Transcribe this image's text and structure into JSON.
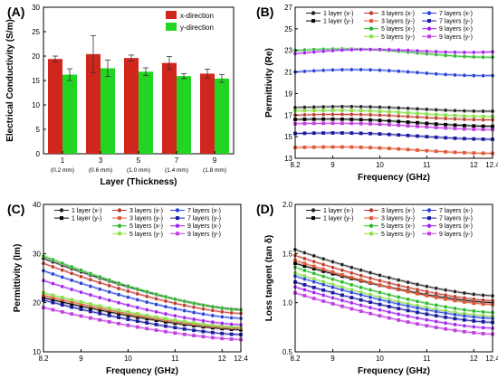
{
  "panels": {
    "a": {
      "label": "(A)"
    },
    "b": {
      "label": "(B)"
    },
    "c": {
      "label": "(C)"
    },
    "d": {
      "label": "(D)"
    }
  },
  "colors": {
    "x_direction": "#d0261c",
    "y_direction": "#22d522",
    "1_x": "#222222",
    "1_y": "#000000",
    "3_x": "#c0392b",
    "3_y": "#e05a3a",
    "5_x": "#27b827",
    "5_y": "#8be04a",
    "7_x": "#2440d8",
    "7_y": "#1a1aa0",
    "9_x": "#a020f0",
    "9_y": "#c040e0"
  },
  "chart_data": [
    {
      "panel": "A",
      "type": "bar",
      "title": "",
      "xlabel": "Layer (Thickness)",
      "ylabel": "Electrical Conductivity (S/m)",
      "ylim": [
        0,
        30
      ],
      "yticks": [
        0,
        5,
        10,
        15,
        20,
        25,
        30
      ],
      "categories": [
        "1",
        "3",
        "5",
        "7",
        "9"
      ],
      "category_sublabels": [
        "(0.2 mm)",
        "(0.6 mm)",
        "(1.0 mm)",
        "(1.4 mm)",
        "(1.8 mm)"
      ],
      "series": [
        {
          "name": "x-direction",
          "values": [
            19.4,
            20.4,
            19.6,
            18.6,
            16.4
          ],
          "errors": [
            0.6,
            3.8,
            0.6,
            1.3,
            0.9
          ]
        },
        {
          "name": "y-direction",
          "values": [
            16.2,
            17.5,
            16.8,
            15.9,
            15.4
          ],
          "errors": [
            1.2,
            1.7,
            0.8,
            0.5,
            0.8
          ]
        }
      ],
      "legend": "top-right"
    },
    {
      "panel": "B",
      "type": "line",
      "title": "",
      "xlabel": "Frequency (GHz)",
      "ylabel": "Permittivity (Re)",
      "xlim": [
        8.2,
        12.4
      ],
      "xticks": [
        "8.2",
        "9",
        "10",
        "11",
        "12",
        "12.4"
      ],
      "ylim": [
        13,
        27
      ],
      "yticks": [
        13,
        15,
        17,
        19,
        21,
        23,
        25,
        27
      ],
      "legend": "top",
      "series": [
        {
          "name": "1 layer (x-)",
          "start": 17.7,
          "end": 17.5
        },
        {
          "name": "1 layer (y-)",
          "start": 16.6,
          "end": 16.1
        },
        {
          "name": "3 layers (x-)",
          "start": 17.0,
          "end": 16.7
        },
        {
          "name": "3 layers (y-)",
          "start": 14.0,
          "end": 13.6
        },
        {
          "name": "5 layers (x-)",
          "start": 23.0,
          "end": 22.6
        },
        {
          "name": "5 layers (y-)",
          "start": 17.4,
          "end": 17.0
        },
        {
          "name": "7 layers (x-)",
          "start": 21.0,
          "end": 20.9
        },
        {
          "name": "7 layers (y-)",
          "start": 15.3,
          "end": 14.9
        },
        {
          "name": "9 layers (x-)",
          "start": 22.7,
          "end": 23.1
        },
        {
          "name": "9 layers (y-)",
          "start": 16.2,
          "end": 15.8
        }
      ]
    },
    {
      "panel": "C",
      "type": "line",
      "title": "",
      "xlabel": "Frequency (GHz)",
      "ylabel": "Permittivity (Im)",
      "xlim": [
        8.2,
        12.4
      ],
      "xticks": [
        "8.2",
        "9",
        "10",
        "11",
        "12",
        "12.4"
      ],
      "ylim": [
        10,
        40
      ],
      "yticks": [
        10,
        20,
        30,
        40
      ],
      "legend": "top",
      "series": [
        {
          "name": "1 layer (x-)",
          "start": 29.0,
          "end": 18.6
        },
        {
          "name": "1 layer (y-)",
          "start": 21.0,
          "end": 14.5
        },
        {
          "name": "3 layers (x-)",
          "start": 28.0,
          "end": 17.8
        },
        {
          "name": "3 layers (y-)",
          "start": 21.5,
          "end": 14.8
        },
        {
          "name": "5 layers (x-)",
          "start": 29.5,
          "end": 18.5
        },
        {
          "name": "5 layers (y-)",
          "start": 22.0,
          "end": 15.0
        },
        {
          "name": "7 layers (x-)",
          "start": 26.5,
          "end": 16.8
        },
        {
          "name": "7 layers (y-)",
          "start": 20.5,
          "end": 13.5
        },
        {
          "name": "9 layers (x-)",
          "start": 24.5,
          "end": 15.5
        },
        {
          "name": "9 layers (y-)",
          "start": 19.0,
          "end": 12.5
        }
      ]
    },
    {
      "panel": "D",
      "type": "line",
      "title": "",
      "xlabel": "Frequency (GHz)",
      "ylabel": "Loss tangent (tan δ)",
      "xlim": [
        8.2,
        12.4
      ],
      "xticks": [
        "8.2",
        "9",
        "10",
        "11",
        "12",
        "12.4"
      ],
      "ylim": [
        0.5,
        2.0
      ],
      "yticks": [
        "0.5",
        "1.0",
        "1.5",
        "2.0"
      ],
      "legend": "top",
      "series": [
        {
          "name": "1 layer (x-)",
          "start": 1.54,
          "end": 1.07
        },
        {
          "name": "1 layer (y-)",
          "start": 1.4,
          "end": 1.0
        },
        {
          "name": "3 layers (x-)",
          "start": 1.48,
          "end": 1.02
        },
        {
          "name": "3 layers (y-)",
          "start": 1.43,
          "end": 0.98
        },
        {
          "name": "5 layers (x-)",
          "start": 1.36,
          "end": 0.9
        },
        {
          "name": "5 layers (y-)",
          "start": 1.3,
          "end": 0.86
        },
        {
          "name": "7 layers (x-)",
          "start": 1.27,
          "end": 0.84
        },
        {
          "name": "7 layers (y-)",
          "start": 1.21,
          "end": 0.8
        },
        {
          "name": "9 layers (x-)",
          "start": 1.16,
          "end": 0.74
        },
        {
          "name": "9 layers (y-)",
          "start": 1.1,
          "end": 0.68
        }
      ]
    }
  ]
}
